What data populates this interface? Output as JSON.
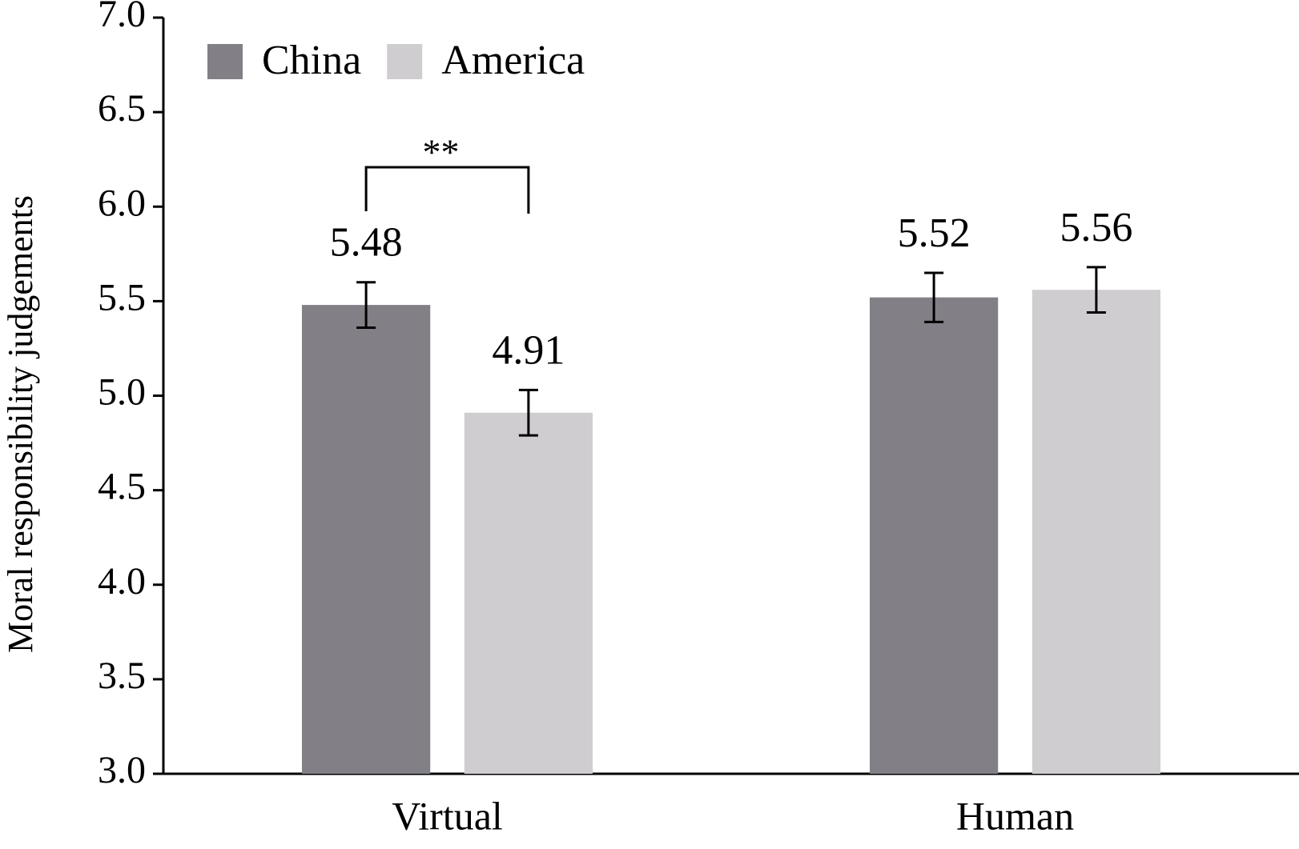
{
  "chart_data": {
    "type": "bar",
    "y_label": "Moral responsibility judgements",
    "categories": [
      "Virtual",
      "Human"
    ],
    "series": [
      {
        "name": "China",
        "color": "#828086",
        "values": [
          5.48,
          5.52
        ],
        "errors": [
          0.12,
          0.13
        ]
      },
      {
        "name": "America",
        "color": "#d0cdd0",
        "values": [
          4.91,
          5.56
        ],
        "errors": [
          0.12,
          0.12
        ]
      }
    ],
    "ylim": [
      3.0,
      7.0
    ],
    "yticks": [
      {
        "value": 3.0,
        "label": "3.0"
      },
      3.5,
      {
        "value": 4.0,
        "label": "4.0"
      },
      4.5,
      {
        "value": 5.0,
        "label": "5.0"
      },
      5.5,
      {
        "value": 6.0,
        "label": "6.0"
      },
      6.5,
      {
        "value": 7.0,
        "label": "7.0"
      }
    ],
    "grid": false,
    "legend": "top-left",
    "annotations": [
      "**"
    ]
  }
}
